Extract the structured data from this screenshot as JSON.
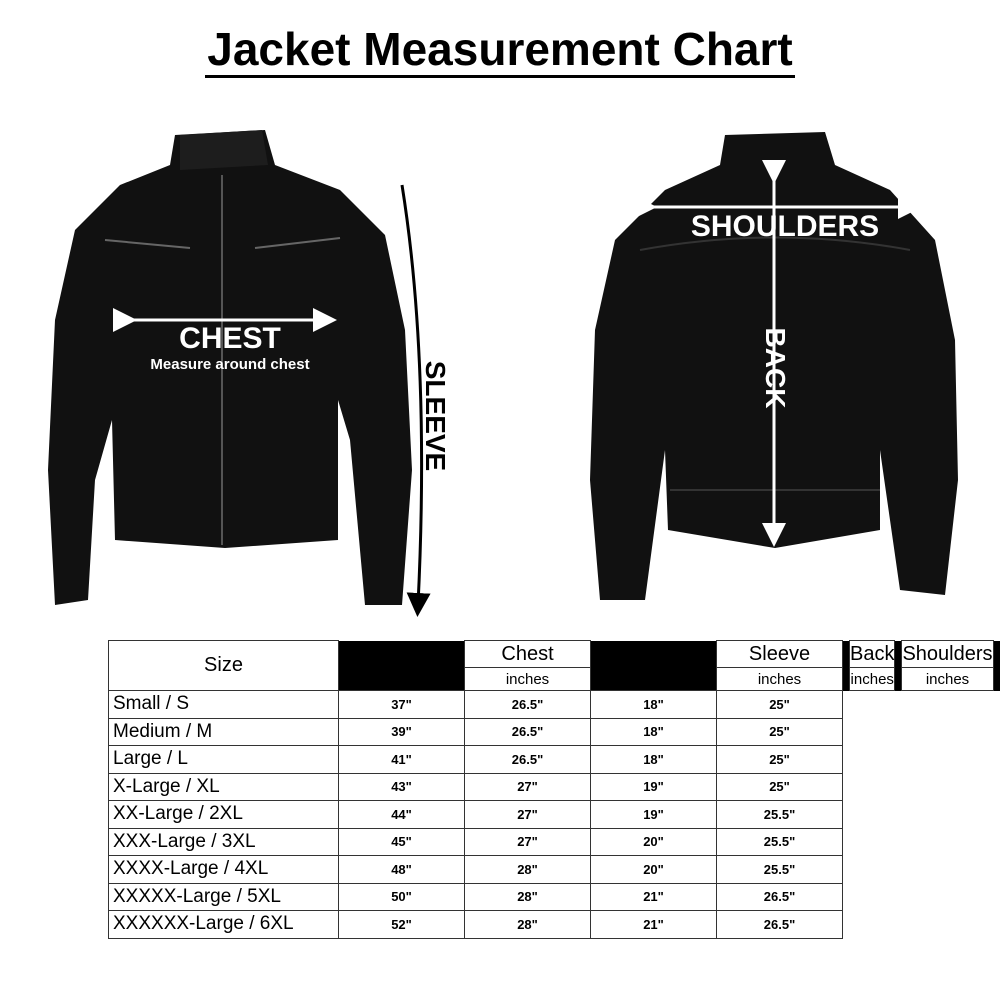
{
  "title": "Jacket Measurement Chart",
  "labels": {
    "chest": "CHEST",
    "chest_note": "Measure around chest",
    "sleeve": "SLEEVE",
    "shoulders": "SHOULDERS",
    "back": "BACK"
  },
  "table": {
    "size_header": "Size",
    "columns": [
      {
        "name": "Chest",
        "unit": "inches"
      },
      {
        "name": "Sleeve",
        "unit": "inches"
      },
      {
        "name": "Back",
        "unit": "inches"
      },
      {
        "name": "Shoulders",
        "unit": "inches"
      }
    ],
    "rows": [
      {
        "size": "Small / S",
        "values": [
          "37\"",
          "26.5\"",
          "18\"",
          "25\""
        ]
      },
      {
        "size": "Medium / M",
        "values": [
          "39\"",
          "26.5\"",
          "18\"",
          "25\""
        ]
      },
      {
        "size": "Large / L",
        "values": [
          "41\"",
          "26.5\"",
          "18\"",
          "25\""
        ]
      },
      {
        "size": "X-Large / XL",
        "values": [
          "43\"",
          "27\"",
          "19\"",
          "25\""
        ]
      },
      {
        "size": "XX-Large / 2XL",
        "values": [
          "44\"",
          "27\"",
          "19\"",
          "25.5\""
        ]
      },
      {
        "size": "XXX-Large / 3XL",
        "values": [
          "45\"",
          "27\"",
          "20\"",
          "25.5\""
        ]
      },
      {
        "size": "XXXX-Large / 4XL",
        "values": [
          "48\"",
          "28\"",
          "20\"",
          "25.5\""
        ]
      },
      {
        "size": "XXXXX-Large / 5XL",
        "values": [
          "50\"",
          "28\"",
          "21\"",
          "26.5\""
        ]
      },
      {
        "size": "XXXXXX-Large / 6XL",
        "values": [
          "52\"",
          "28\"",
          "21\"",
          "26.5\""
        ]
      }
    ]
  }
}
